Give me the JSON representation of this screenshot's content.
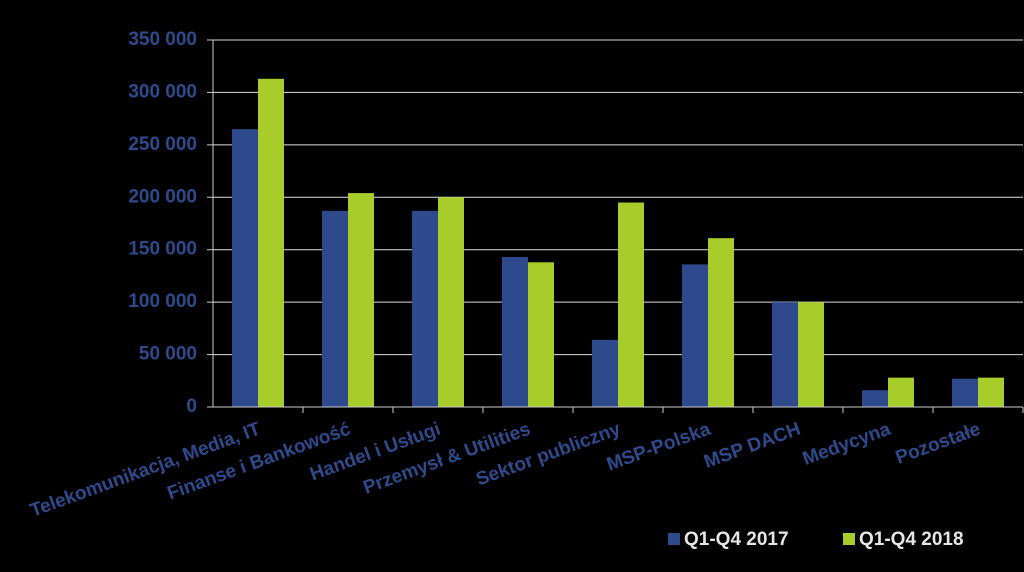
{
  "chart_data": {
    "type": "bar",
    "categories": [
      "Telekomunikacja, Media, IT",
      "Finanse i Bankowość",
      "Handel i Usługi",
      "Przemysł & Utilities",
      "Sektor publiczny",
      "MSP-Polska",
      "MSP DACH",
      "Medycyna",
      "Pozostałe"
    ],
    "series": [
      {
        "name": "Q1-Q4 2017",
        "color": "#2e4a8c",
        "values": [
          265000,
          187000,
          187000,
          143000,
          64000,
          136000,
          100000,
          16000,
          27000
        ]
      },
      {
        "name": "Q1-Q4 2018",
        "color": "#a8cc2a",
        "values": [
          313000,
          204000,
          200000,
          138000,
          195000,
          161000,
          100000,
          28000,
          28000
        ]
      }
    ],
    "ylim": [
      0,
      350000
    ],
    "yticks": [
      {
        "value": 0,
        "label": "0"
      },
      {
        "value": 50000,
        "label": "50 000"
      },
      {
        "value": 100000,
        "label": "100 000"
      },
      {
        "value": 150000,
        "label": "150 000"
      },
      {
        "value": 200000,
        "label": "200 000"
      },
      {
        "value": 250000,
        "label": "250 000"
      },
      {
        "value": 300000,
        "label": "300 000"
      },
      {
        "value": 350000,
        "label": "350 000"
      }
    ],
    "grid": true,
    "legend": "bottom-right"
  }
}
